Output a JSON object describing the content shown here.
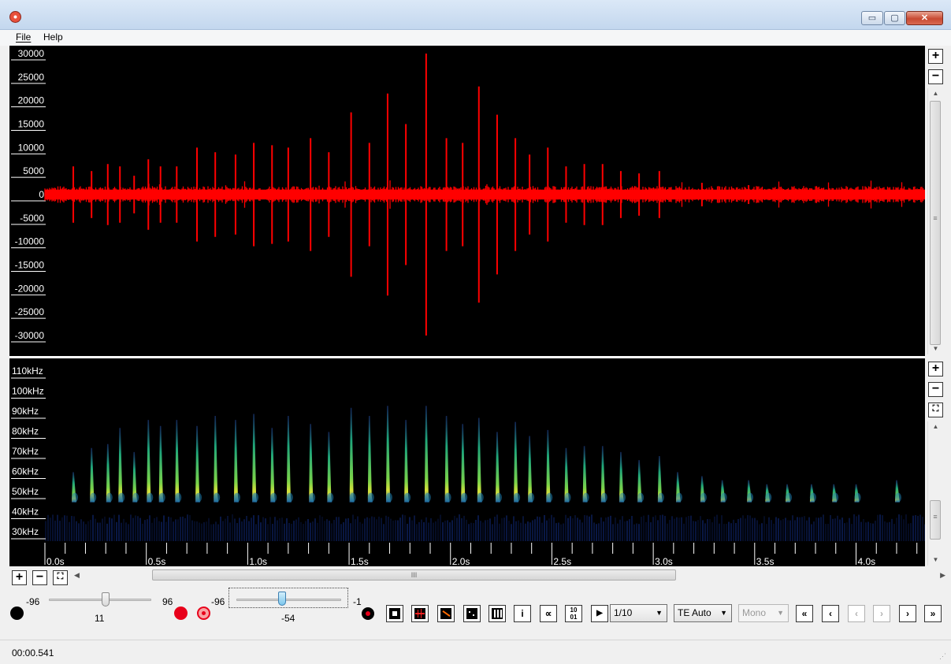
{
  "window": {
    "minimize": "▭",
    "maximize": "▢",
    "close": "✕",
    "icon": "app-record-icon"
  },
  "menu": {
    "file": "File",
    "help": "Help"
  },
  "waveform": {
    "y_ticks": [
      "30000",
      "25000",
      "20000",
      "15000",
      "10000",
      "5000",
      "0",
      "-5000",
      "-10000",
      "-15000",
      "-20000",
      "-25000",
      "-30000"
    ],
    "y_values": [
      30000,
      25000,
      20000,
      15000,
      10000,
      5000,
      0,
      -5000,
      -10000,
      -15000,
      -20000,
      -25000,
      -30000
    ],
    "color": "#ff0000",
    "noise_amplitude": 1500,
    "pulses": [
      {
        "t": 0.14,
        "a": 6000
      },
      {
        "t": 0.23,
        "a": 5000
      },
      {
        "t": 0.31,
        "a": 6500
      },
      {
        "t": 0.37,
        "a": 6000
      },
      {
        "t": 0.44,
        "a": 4000
      },
      {
        "t": 0.51,
        "a": 7500
      },
      {
        "t": 0.57,
        "a": 6000
      },
      {
        "t": 0.65,
        "a": 6000
      },
      {
        "t": 0.75,
        "a": 10000
      },
      {
        "t": 0.84,
        "a": 9000
      },
      {
        "t": 0.94,
        "a": 8500
      },
      {
        "t": 1.03,
        "a": 11000
      },
      {
        "t": 1.12,
        "a": 10500
      },
      {
        "t": 1.2,
        "a": 10000
      },
      {
        "t": 1.31,
        "a": 12000
      },
      {
        "t": 1.4,
        "a": 9000
      },
      {
        "t": 1.51,
        "a": 17500
      },
      {
        "t": 1.6,
        "a": 11000
      },
      {
        "t": 1.69,
        "a": 21500
      },
      {
        "t": 1.78,
        "a": 15000
      },
      {
        "t": 1.88,
        "a": 30000
      },
      {
        "t": 1.98,
        "a": 12000
      },
      {
        "t": 2.06,
        "a": 11000
      },
      {
        "t": 2.14,
        "a": 23000
      },
      {
        "t": 2.23,
        "a": 17000
      },
      {
        "t": 2.32,
        "a": 12000
      },
      {
        "t": 2.39,
        "a": 8500
      },
      {
        "t": 2.48,
        "a": 10000
      },
      {
        "t": 2.57,
        "a": 6000
      },
      {
        "t": 2.66,
        "a": 6500
      },
      {
        "t": 2.75,
        "a": 6500
      },
      {
        "t": 2.84,
        "a": 5000
      },
      {
        "t": 2.93,
        "a": 4500
      },
      {
        "t": 3.03,
        "a": 5000
      },
      {
        "t": 3.24,
        "a": 2500
      },
      {
        "t": 3.47,
        "a": 2000
      }
    ]
  },
  "spectrogram": {
    "y_ticks": [
      "110kHz",
      "100kHz",
      "90kHz",
      "80kHz",
      "70kHz",
      "60kHz",
      "50kHz",
      "40kHz",
      "30kHz"
    ],
    "y_values": [
      110,
      100,
      90,
      80,
      70,
      60,
      50,
      40,
      30
    ],
    "calls": [
      {
        "t": 0.14,
        "top": 62
      },
      {
        "t": 0.23,
        "top": 74
      },
      {
        "t": 0.31,
        "top": 76
      },
      {
        "t": 0.37,
        "top": 84
      },
      {
        "t": 0.44,
        "top": 72
      },
      {
        "t": 0.51,
        "top": 88
      },
      {
        "t": 0.57,
        "top": 85
      },
      {
        "t": 0.65,
        "top": 88
      },
      {
        "t": 0.75,
        "top": 85
      },
      {
        "t": 0.84,
        "top": 90
      },
      {
        "t": 0.94,
        "top": 88
      },
      {
        "t": 1.03,
        "top": 91
      },
      {
        "t": 1.12,
        "top": 84
      },
      {
        "t": 1.2,
        "top": 90
      },
      {
        "t": 1.31,
        "top": 86
      },
      {
        "t": 1.4,
        "top": 82
      },
      {
        "t": 1.51,
        "top": 94
      },
      {
        "t": 1.6,
        "top": 90
      },
      {
        "t": 1.69,
        "top": 95
      },
      {
        "t": 1.78,
        "top": 88
      },
      {
        "t": 1.88,
        "top": 95
      },
      {
        "t": 1.98,
        "top": 90
      },
      {
        "t": 2.06,
        "top": 86
      },
      {
        "t": 2.14,
        "top": 89
      },
      {
        "t": 2.23,
        "top": 82
      },
      {
        "t": 2.32,
        "top": 87
      },
      {
        "t": 2.39,
        "top": 80
      },
      {
        "t": 2.48,
        "top": 83
      },
      {
        "t": 2.57,
        "top": 74
      },
      {
        "t": 2.66,
        "top": 75
      },
      {
        "t": 2.75,
        "top": 75
      },
      {
        "t": 2.84,
        "top": 72
      },
      {
        "t": 2.93,
        "top": 68
      },
      {
        "t": 3.03,
        "top": 70
      },
      {
        "t": 3.12,
        "top": 62
      },
      {
        "t": 3.24,
        "top": 60
      },
      {
        "t": 3.34,
        "top": 58
      },
      {
        "t": 3.47,
        "top": 58
      },
      {
        "t": 3.56,
        "top": 56
      },
      {
        "t": 3.66,
        "top": 56
      },
      {
        "t": 3.78,
        "top": 56
      },
      {
        "t": 3.89,
        "top": 56
      },
      {
        "t": 4.0,
        "top": 56
      },
      {
        "t": 4.2,
        "top": 58
      }
    ]
  },
  "time_axis": {
    "labels": [
      "0.0s",
      "0.5s",
      "1.0s",
      "1.5s",
      "2.0s",
      "2.5s",
      "3.0s",
      "3.5s",
      "4.0s"
    ],
    "values": [
      0,
      0.5,
      1.0,
      1.5,
      2.0,
      2.5,
      3.0,
      3.5,
      4.0
    ],
    "max": 4.34
  },
  "controls": {
    "slider1": {
      "min": "-96",
      "max": "96",
      "value": "11"
    },
    "slider2": {
      "min": "-96",
      "max": "-1",
      "value": "-54"
    },
    "decimation": "1/10",
    "trigger": "TE Auto",
    "channel": "Mono"
  },
  "status": {
    "time": "00:00.541"
  }
}
